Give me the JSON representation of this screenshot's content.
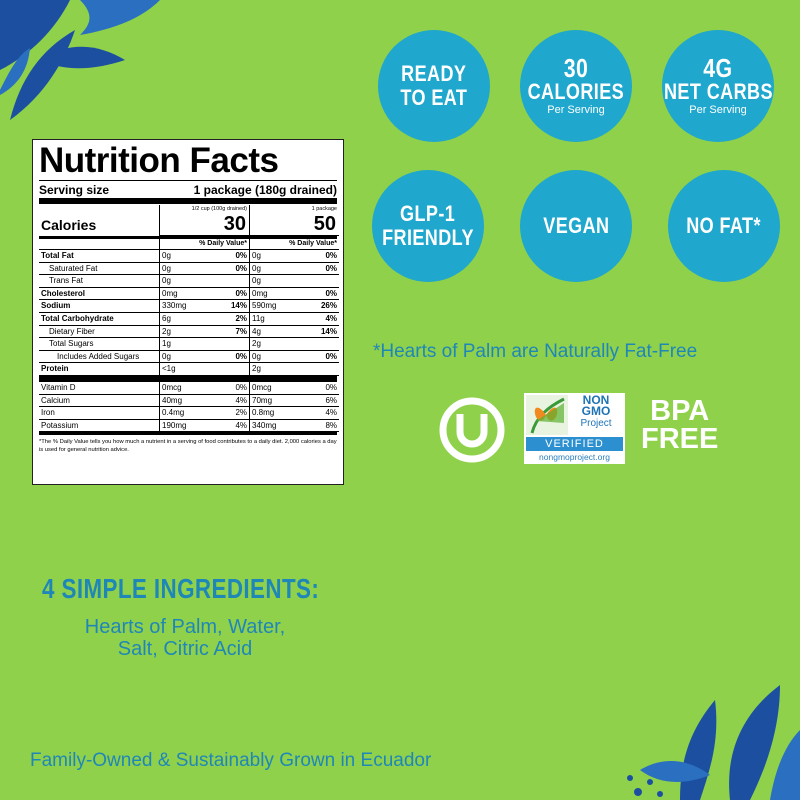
{
  "nutrition": {
    "title": "Nutrition Facts",
    "serving_label": "Serving size",
    "serving_value": "1 package (180g drained)",
    "col1_header": "1/2 cup (100g drained)",
    "col2_header": "1 package",
    "calories_label": "Calories",
    "calories_col1": "30",
    "calories_col2": "50",
    "dv_label": "% Daily Value*",
    "rows": [
      {
        "label": "Total Fat",
        "a": "0g",
        "ap": "0%",
        "b": "0g",
        "bp": "0%"
      },
      {
        "label": "Saturated Fat",
        "a": "0g",
        "ap": "0%",
        "b": "0g",
        "bp": "0%"
      },
      {
        "label": "Trans Fat",
        "a": "0g",
        "ap": "",
        "b": "0g",
        "bp": ""
      },
      {
        "label": "Cholesterol",
        "a": "0mg",
        "ap": "0%",
        "b": "0mg",
        "bp": "0%"
      },
      {
        "label": "Sodium",
        "a": "330mg",
        "ap": "14%",
        "b": "590mg",
        "bp": "26%"
      },
      {
        "label": "Total Carbohydrate",
        "a": "6g",
        "ap": "2%",
        "b": "11g",
        "bp": "4%"
      },
      {
        "label": "Dietary Fiber",
        "a": "2g",
        "ap": "7%",
        "b": "4g",
        "bp": "14%"
      },
      {
        "label": "Total Sugars",
        "a": "1g",
        "ap": "",
        "b": "2g",
        "bp": ""
      },
      {
        "label": "Includes Added Sugars",
        "a": "0g",
        "ap": "0%",
        "b": "0g",
        "bp": "0%"
      },
      {
        "label": "Protein",
        "a": "<1g",
        "ap": "",
        "b": "2g",
        "bp": ""
      }
    ],
    "vitamins": [
      {
        "label": "Vitamin D",
        "a": "0mcg",
        "ap": "0%",
        "b": "0mcg",
        "bp": "0%"
      },
      {
        "label": "Calcium",
        "a": "40mg",
        "ap": "4%",
        "b": "70mg",
        "bp": "6%"
      },
      {
        "label": "Iron",
        "a": "0.4mg",
        "ap": "2%",
        "b": "0.8mg",
        "bp": "4%"
      },
      {
        "label": "Potassium",
        "a": "190mg",
        "ap": "4%",
        "b": "340mg",
        "bp": "8%"
      }
    ],
    "footnote": "*The % Daily Value tells you how much a nutrient in a serving of food contributes to a daily diet. 2,000 calories a day is used for general nutrition advice."
  },
  "badges": [
    {
      "line1": "READY",
      "line2": "TO EAT",
      "sub": ""
    },
    {
      "line1": "30",
      "line2": "CALORIES",
      "sub": "Per Serving"
    },
    {
      "line1": "4G",
      "line2": "NET CARBS",
      "sub": "Per Serving"
    },
    {
      "line1": "GLP-1",
      "line2": "FRIENDLY",
      "sub": ""
    },
    {
      "line1": "VEGAN",
      "line2": "",
      "sub": ""
    },
    {
      "line1": "NO FAT*",
      "line2": "",
      "sub": ""
    }
  ],
  "footnote_text": "*Hearts of  Palm are Naturally Fat-Free",
  "certs": {
    "ngmo_non": "NON",
    "ngmo_gmo": "GMO",
    "ngmo_project": "Project",
    "ngmo_verified": "VERIFIED",
    "ngmo_url": "nongmoproject.org",
    "bpa_line1": "BPA",
    "bpa_line2": "FREE"
  },
  "ingredients": {
    "title": "4 SIMPLE INGREDIENTS:",
    "line1": "Hearts of Palm, Water,",
    "line2": "Salt, Citric Acid"
  },
  "tagline": "Family-Owned & Sustainably Grown in Ecuador",
  "colors": {
    "background": "#8fd14b",
    "badge": "#1fa7cd",
    "text_blue": "#1f87b8"
  }
}
